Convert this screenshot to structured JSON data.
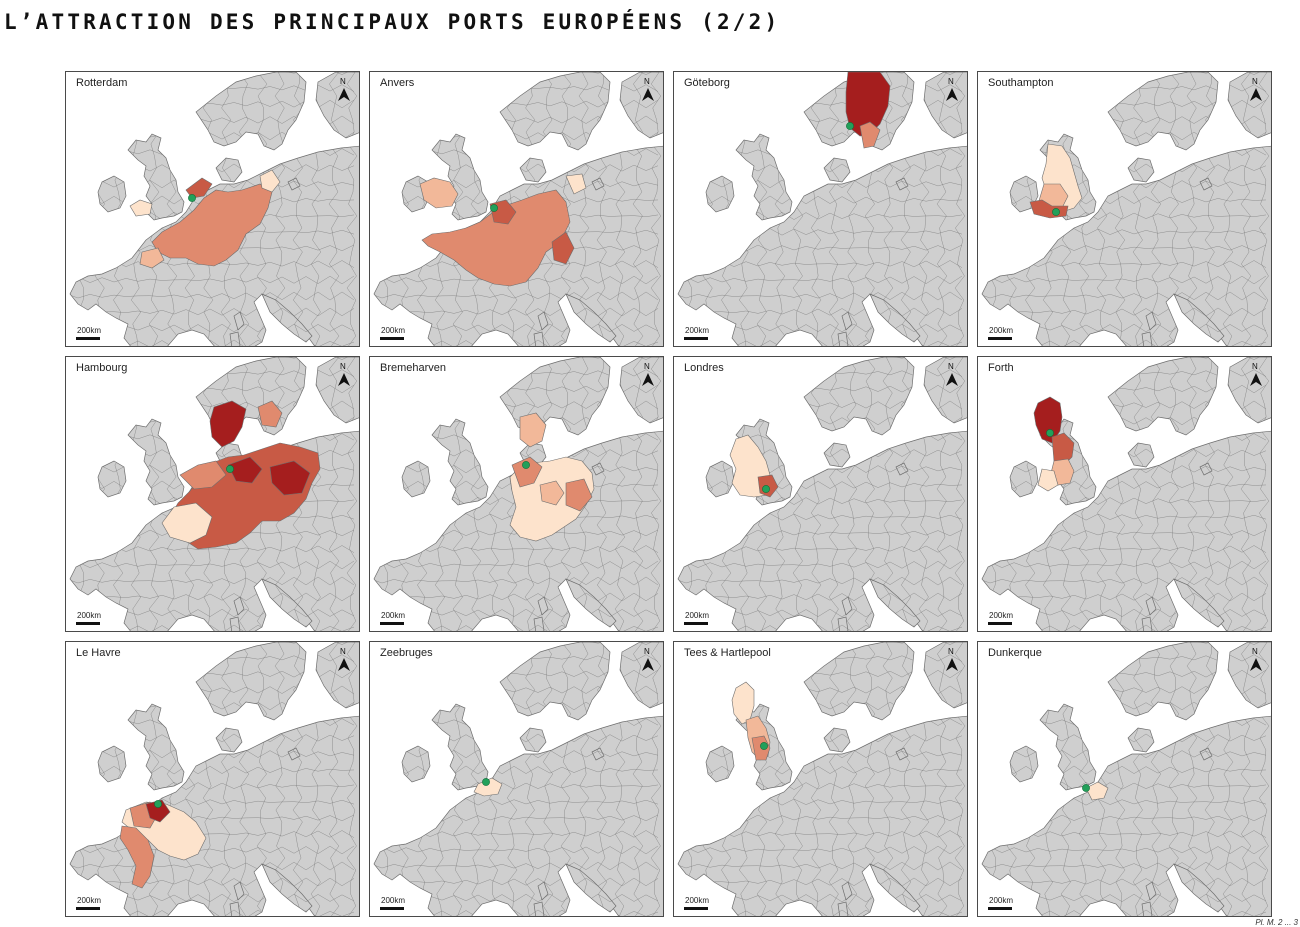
{
  "title": "L’ATTRACTION DES PRINCIPAUX PORTS EUROPÉENS (2/2)",
  "scale_label": "200km",
  "north_label": "N",
  "credit": "Pl. M. 2 ... 3",
  "colors": {
    "background_land": "#cfcfcf",
    "border": "#6e6e6e",
    "sea": "#ffffff",
    "port_marker": "#22a05a",
    "class_1": "#fde3cc",
    "class_2": "#f2b899",
    "class_3": "#e08a6e",
    "class_4": "#c85a45",
    "class_5": "#a51e1e"
  },
  "panels": [
    {
      "name": "Rotterdam",
      "hinterland": "Pays-Bas, Belgique, Nord et Est de la France, Ouest de l’Allemagne, Suisse"
    },
    {
      "name": "Anvers",
      "hinterland": "Belgique, France, Pays-Bas, Allemagne de l’Ouest, Sud de l’Angleterre"
    },
    {
      "name": "Göteborg",
      "hinterland": "Suède"
    },
    {
      "name": "Southampton",
      "hinterland": "Angleterre"
    },
    {
      "name": "Hambourg",
      "hinterland": "Allemagne, Danemark, Pologne de l’Ouest, Tchéquie"
    },
    {
      "name": "Bremeharven",
      "hinterland": "Allemagne, Danemark"
    },
    {
      "name": "Londres",
      "hinterland": "Angleterre"
    },
    {
      "name": "Forth",
      "hinterland": "Écosse, Nord de l’Angleterre"
    },
    {
      "name": "Le Havre",
      "hinterland": "Ouest et centre de la France"
    },
    {
      "name": "Zeebruges",
      "hinterland": "Flandre"
    },
    {
      "name": "Tees & Hartlepool",
      "hinterland": "Nord de l’Angleterre, Écosse"
    },
    {
      "name": "Dunkerque",
      "hinterland": "Nord de la France"
    }
  ]
}
